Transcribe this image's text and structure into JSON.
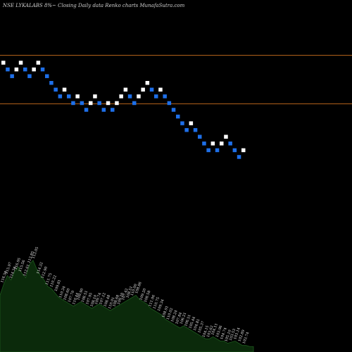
{
  "chart_data": {
    "type": "renko",
    "title": "NSE LYKALABS 8%~  Closing Daily data  Renko  charts MunafaSutra.com",
    "colors": {
      "background": "#000000",
      "up_brick": "#ffffff",
      "down_brick": "#1e6fe8",
      "reference_line": "#b0601a",
      "volume_fill": "#0b2a0b",
      "volume_stroke": "#1d5a1d"
    },
    "reference_lines": [
      {
        "name": "upper-line",
        "value": 116.5
      },
      {
        "name": "lower-line",
        "value": 110.0
      }
    ],
    "ylim": [
      90.0,
      122.0
    ],
    "bricks": [
      {
        "dir": "up",
        "value": 115.5
      },
      {
        "dir": "down",
        "value": 114.6
      },
      {
        "dir": "down",
        "value": 113.7
      },
      {
        "dir": "up",
        "value": 114.6
      },
      {
        "dir": "up",
        "value": 115.5
      },
      {
        "dir": "down",
        "value": 114.6
      },
      {
        "dir": "down",
        "value": 113.7
      },
      {
        "dir": "up",
        "value": 114.6
      },
      {
        "dir": "up",
        "value": 115.5
      },
      {
        "dir": "down",
        "value": 114.6
      },
      {
        "dir": "down",
        "value": 113.7
      },
      {
        "dir": "down",
        "value": 112.8
      },
      {
        "dir": "down",
        "value": 111.9
      },
      {
        "dir": "down",
        "value": 111.0
      },
      {
        "dir": "up",
        "value": 111.9
      },
      {
        "dir": "down",
        "value": 111.0
      },
      {
        "dir": "down",
        "value": 110.1
      },
      {
        "dir": "up",
        "value": 111.0
      },
      {
        "dir": "down",
        "value": 110.1
      },
      {
        "dir": "down",
        "value": 109.2
      },
      {
        "dir": "up",
        "value": 110.1
      },
      {
        "dir": "up",
        "value": 111.0
      },
      {
        "dir": "down",
        "value": 110.1
      },
      {
        "dir": "down",
        "value": 109.2
      },
      {
        "dir": "up",
        "value": 110.1
      },
      {
        "dir": "down",
        "value": 109.2
      },
      {
        "dir": "up",
        "value": 110.1
      },
      {
        "dir": "up",
        "value": 111.0
      },
      {
        "dir": "up",
        "value": 111.9
      },
      {
        "dir": "down",
        "value": 111.0
      },
      {
        "dir": "down",
        "value": 110.1
      },
      {
        "dir": "up",
        "value": 111.0
      },
      {
        "dir": "up",
        "value": 111.9
      },
      {
        "dir": "up",
        "value": 112.8
      },
      {
        "dir": "down",
        "value": 111.9
      },
      {
        "dir": "down",
        "value": 111.0
      },
      {
        "dir": "up",
        "value": 111.9
      },
      {
        "dir": "down",
        "value": 111.0
      },
      {
        "dir": "down",
        "value": 110.1
      },
      {
        "dir": "down",
        "value": 109.2
      },
      {
        "dir": "down",
        "value": 108.3
      },
      {
        "dir": "down",
        "value": 107.4
      },
      {
        "dir": "down",
        "value": 106.5
      },
      {
        "dir": "up",
        "value": 107.4
      },
      {
        "dir": "down",
        "value": 106.5
      },
      {
        "dir": "down",
        "value": 105.6
      },
      {
        "dir": "down",
        "value": 104.7
      },
      {
        "dir": "down",
        "value": 103.8
      },
      {
        "dir": "up",
        "value": 104.7
      },
      {
        "dir": "down",
        "value": 103.8
      },
      {
        "dir": "up",
        "value": 104.7
      },
      {
        "dir": "up",
        "value": 105.6
      },
      {
        "dir": "down",
        "value": 104.7
      },
      {
        "dir": "down",
        "value": 103.8
      },
      {
        "dir": "down",
        "value": 102.9
      },
      {
        "dir": "up",
        "value": 103.8
      }
    ],
    "volume_labels": [
      "116.50",
      "115.97",
      "114.34",
      "116.95",
      "115.56",
      "112.61",
      "113.85",
      "113.05",
      "114.32",
      "112.90",
      "111.75",
      "110.22",
      "109.81",
      "110.34",
      "108.60",
      "107.70",
      "110.44",
      "109.90",
      "108.51",
      "107.95",
      "108.10",
      "109.74",
      "107.12",
      "108.48",
      "110.01",
      "108.68",
      "109.20",
      "107.42",
      "108.51",
      "110.00",
      "108.86",
      "109.20",
      "108.58",
      "111.06",
      "110.75",
      "109.34",
      "108.91",
      "110.02",
      "108.24",
      "107.84",
      "106.21",
      "106.51",
      "105.44",
      "104.81",
      "105.37",
      "104.15",
      "103.62",
      "104.11",
      "103.96",
      "104.74",
      "105.10",
      "103.53",
      "103.14",
      "102.89",
      "103.74"
    ],
    "volume": [
      52,
      62,
      70,
      66,
      74,
      78,
      72,
      68,
      80,
      84,
      76,
      70,
      66,
      60,
      58,
      54,
      50,
      48,
      46,
      44,
      42,
      44,
      46,
      44,
      42,
      40,
      42,
      44,
      42,
      40,
      38,
      40,
      42,
      44,
      46,
      48,
      50,
      52,
      48,
      46,
      44,
      40,
      38,
      36,
      34,
      30,
      28,
      26,
      24,
      22,
      24,
      22,
      20,
      18,
      16,
      14,
      12,
      12,
      14,
      12,
      10,
      10,
      8,
      9,
      10,
      8,
      6,
      6,
      5,
      5
    ]
  }
}
